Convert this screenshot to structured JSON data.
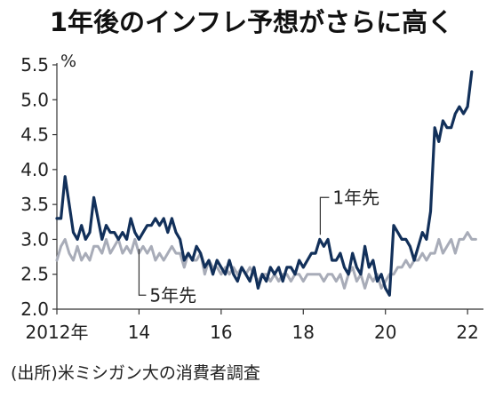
{
  "title": "1年後のインフレ予想がさらに高く",
  "source": "(出所)米ミシガン大の消費者調査",
  "chart_data": {
    "type": "line",
    "title": "1年後のインフレ予想がさらに高く",
    "ylabel": "%",
    "ylim": [
      2.0,
      5.5
    ],
    "xlim": [
      2012,
      2022.3
    ],
    "yticks": [
      "5.5",
      "5.0",
      "4.5",
      "4.0",
      "3.5",
      "3.0",
      "2.5",
      "2.0"
    ],
    "xticks": [
      {
        "value": 2012,
        "label": "2012年"
      },
      {
        "value": 2014,
        "label": "14"
      },
      {
        "value": 2016,
        "label": "16"
      },
      {
        "value": 2018,
        "label": "18"
      },
      {
        "value": 2020,
        "label": "20"
      },
      {
        "value": 2022,
        "label": "22"
      }
    ],
    "grid": false,
    "series": [
      {
        "name": "1年先",
        "color": "#12305a",
        "label_at": {
          "x": 2018.5,
          "y": 3.6
        },
        "points": [
          [
            2012.0,
            3.3
          ],
          [
            2012.1,
            3.3
          ],
          [
            2012.2,
            3.9
          ],
          [
            2012.3,
            3.5
          ],
          [
            2012.4,
            3.1
          ],
          [
            2012.5,
            3.0
          ],
          [
            2012.6,
            3.2
          ],
          [
            2012.7,
            3.0
          ],
          [
            2012.8,
            3.1
          ],
          [
            2012.9,
            3.6
          ],
          [
            2013.0,
            3.3
          ],
          [
            2013.1,
            3.0
          ],
          [
            2013.2,
            3.2
          ],
          [
            2013.3,
            3.1
          ],
          [
            2013.4,
            3.1
          ],
          [
            2013.5,
            3.0
          ],
          [
            2013.6,
            3.1
          ],
          [
            2013.7,
            3.0
          ],
          [
            2013.8,
            3.3
          ],
          [
            2013.9,
            3.1
          ],
          [
            2014.0,
            3.0
          ],
          [
            2014.1,
            3.1
          ],
          [
            2014.2,
            3.2
          ],
          [
            2014.3,
            3.2
          ],
          [
            2014.4,
            3.3
          ],
          [
            2014.5,
            3.2
          ],
          [
            2014.6,
            3.3
          ],
          [
            2014.7,
            3.1
          ],
          [
            2014.8,
            3.3
          ],
          [
            2014.9,
            3.1
          ],
          [
            2015.0,
            3.0
          ],
          [
            2015.1,
            2.7
          ],
          [
            2015.2,
            2.8
          ],
          [
            2015.3,
            2.7
          ],
          [
            2015.4,
            2.9
          ],
          [
            2015.5,
            2.8
          ],
          [
            2015.6,
            2.6
          ],
          [
            2015.7,
            2.7
          ],
          [
            2015.8,
            2.5
          ],
          [
            2015.9,
            2.7
          ],
          [
            2016.0,
            2.6
          ],
          [
            2016.1,
            2.5
          ],
          [
            2016.2,
            2.7
          ],
          [
            2016.3,
            2.5
          ],
          [
            2016.4,
            2.4
          ],
          [
            2016.5,
            2.6
          ],
          [
            2016.6,
            2.5
          ],
          [
            2016.7,
            2.4
          ],
          [
            2016.8,
            2.6
          ],
          [
            2016.9,
            2.3
          ],
          [
            2017.0,
            2.5
          ],
          [
            2017.1,
            2.4
          ],
          [
            2017.2,
            2.6
          ],
          [
            2017.3,
            2.5
          ],
          [
            2017.4,
            2.6
          ],
          [
            2017.5,
            2.4
          ],
          [
            2017.6,
            2.6
          ],
          [
            2017.7,
            2.6
          ],
          [
            2017.8,
            2.5
          ],
          [
            2017.9,
            2.7
          ],
          [
            2018.0,
            2.6
          ],
          [
            2018.1,
            2.7
          ],
          [
            2018.2,
            2.8
          ],
          [
            2018.3,
            2.8
          ],
          [
            2018.4,
            3.0
          ],
          [
            2018.5,
            2.9
          ],
          [
            2018.6,
            3.0
          ],
          [
            2018.7,
            2.7
          ],
          [
            2018.8,
            2.7
          ],
          [
            2018.9,
            2.8
          ],
          [
            2019.0,
            2.6
          ],
          [
            2019.1,
            2.5
          ],
          [
            2019.2,
            2.8
          ],
          [
            2019.3,
            2.6
          ],
          [
            2019.4,
            2.5
          ],
          [
            2019.5,
            2.9
          ],
          [
            2019.6,
            2.6
          ],
          [
            2019.7,
            2.7
          ],
          [
            2019.8,
            2.4
          ],
          [
            2019.9,
            2.5
          ],
          [
            2020.0,
            2.3
          ],
          [
            2020.1,
            2.2
          ],
          [
            2020.2,
            3.2
          ],
          [
            2020.3,
            3.1
          ],
          [
            2020.4,
            3.0
          ],
          [
            2020.5,
            3.0
          ],
          [
            2020.6,
            2.9
          ],
          [
            2020.7,
            2.7
          ],
          [
            2020.8,
            2.9
          ],
          [
            2020.9,
            3.1
          ],
          [
            2021.0,
            3.0
          ],
          [
            2021.1,
            3.4
          ],
          [
            2021.2,
            4.6
          ],
          [
            2021.3,
            4.4
          ],
          [
            2021.4,
            4.7
          ],
          [
            2021.5,
            4.6
          ],
          [
            2021.6,
            4.6
          ],
          [
            2021.7,
            4.8
          ],
          [
            2021.8,
            4.9
          ],
          [
            2021.9,
            4.8
          ],
          [
            2022.0,
            4.9
          ],
          [
            2022.1,
            5.4
          ]
        ]
      },
      {
        "name": "5年先",
        "color": "#a8acb8",
        "label_at": {
          "x": 2014.0,
          "y": 2.2
        },
        "points": [
          [
            2012.0,
            2.7
          ],
          [
            2012.1,
            2.9
          ],
          [
            2012.2,
            3.0
          ],
          [
            2012.3,
            2.8
          ],
          [
            2012.4,
            2.7
          ],
          [
            2012.5,
            2.9
          ],
          [
            2012.6,
            2.7
          ],
          [
            2012.7,
            2.8
          ],
          [
            2012.8,
            2.7
          ],
          [
            2012.9,
            2.9
          ],
          [
            2013.0,
            2.9
          ],
          [
            2013.1,
            2.8
          ],
          [
            2013.2,
            3.0
          ],
          [
            2013.3,
            2.8
          ],
          [
            2013.4,
            2.9
          ],
          [
            2013.5,
            3.0
          ],
          [
            2013.6,
            2.8
          ],
          [
            2013.7,
            2.9
          ],
          [
            2013.8,
            2.8
          ],
          [
            2013.9,
            3.0
          ],
          [
            2014.0,
            2.8
          ],
          [
            2014.1,
            2.9
          ],
          [
            2014.2,
            2.8
          ],
          [
            2014.3,
            2.9
          ],
          [
            2014.4,
            2.7
          ],
          [
            2014.5,
            2.8
          ],
          [
            2014.6,
            2.7
          ],
          [
            2014.7,
            2.8
          ],
          [
            2014.8,
            2.9
          ],
          [
            2014.9,
            2.8
          ],
          [
            2015.0,
            2.8
          ],
          [
            2015.1,
            2.6
          ],
          [
            2015.2,
            2.8
          ],
          [
            2015.3,
            2.7
          ],
          [
            2015.4,
            2.7
          ],
          [
            2015.5,
            2.8
          ],
          [
            2015.6,
            2.5
          ],
          [
            2015.7,
            2.7
          ],
          [
            2015.8,
            2.6
          ],
          [
            2015.9,
            2.6
          ],
          [
            2016.0,
            2.5
          ],
          [
            2016.1,
            2.6
          ],
          [
            2016.2,
            2.5
          ],
          [
            2016.3,
            2.6
          ],
          [
            2016.4,
            2.5
          ],
          [
            2016.5,
            2.6
          ],
          [
            2016.6,
            2.5
          ],
          [
            2016.7,
            2.6
          ],
          [
            2016.8,
            2.5
          ],
          [
            2016.9,
            2.4
          ],
          [
            2017.0,
            2.5
          ],
          [
            2017.1,
            2.5
          ],
          [
            2017.2,
            2.4
          ],
          [
            2017.3,
            2.5
          ],
          [
            2017.4,
            2.4
          ],
          [
            2017.5,
            2.5
          ],
          [
            2017.6,
            2.5
          ],
          [
            2017.7,
            2.4
          ],
          [
            2017.8,
            2.5
          ],
          [
            2017.9,
            2.5
          ],
          [
            2018.0,
            2.4
          ],
          [
            2018.1,
            2.5
          ],
          [
            2018.2,
            2.5
          ],
          [
            2018.3,
            2.5
          ],
          [
            2018.4,
            2.5
          ],
          [
            2018.5,
            2.4
          ],
          [
            2018.6,
            2.5
          ],
          [
            2018.7,
            2.5
          ],
          [
            2018.8,
            2.4
          ],
          [
            2018.9,
            2.5
          ],
          [
            2019.0,
            2.3
          ],
          [
            2019.1,
            2.5
          ],
          [
            2019.2,
            2.6
          ],
          [
            2019.3,
            2.4
          ],
          [
            2019.4,
            2.5
          ],
          [
            2019.5,
            2.3
          ],
          [
            2019.6,
            2.5
          ],
          [
            2019.7,
            2.4
          ],
          [
            2019.8,
            2.5
          ],
          [
            2019.9,
            2.3
          ],
          [
            2020.0,
            2.4
          ],
          [
            2020.1,
            2.5
          ],
          [
            2020.2,
            2.5
          ],
          [
            2020.3,
            2.6
          ],
          [
            2020.4,
            2.6
          ],
          [
            2020.5,
            2.7
          ],
          [
            2020.6,
            2.6
          ],
          [
            2020.7,
            2.7
          ],
          [
            2020.8,
            2.7
          ],
          [
            2020.9,
            2.8
          ],
          [
            2021.0,
            2.7
          ],
          [
            2021.1,
            2.8
          ],
          [
            2021.2,
            2.8
          ],
          [
            2021.3,
            3.0
          ],
          [
            2021.4,
            2.8
          ],
          [
            2021.5,
            2.9
          ],
          [
            2021.6,
            3.0
          ],
          [
            2021.7,
            2.8
          ],
          [
            2021.8,
            3.0
          ],
          [
            2021.9,
            3.0
          ],
          [
            2022.0,
            3.1
          ],
          [
            2022.1,
            3.0
          ],
          [
            2022.2,
            3.0
          ]
        ]
      }
    ]
  }
}
